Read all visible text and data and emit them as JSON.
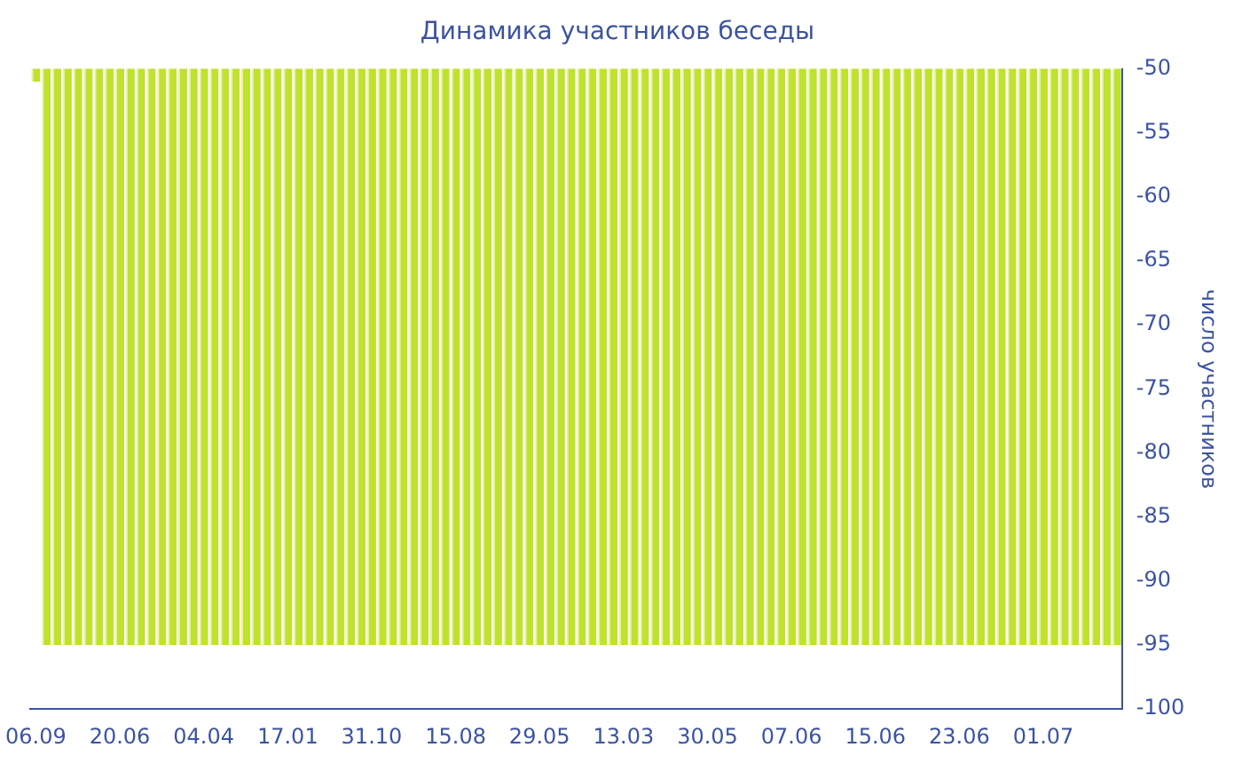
{
  "chart_data": {
    "type": "bar",
    "title": "Динамика участников беседы",
    "ylabel": "число участников",
    "categories": [
      "06.09",
      null,
      null,
      null,
      null,
      null,
      null,
      null,
      "20.06",
      null,
      null,
      null,
      null,
      null,
      null,
      null,
      "04.04",
      null,
      null,
      null,
      null,
      null,
      null,
      null,
      "17.01",
      null,
      null,
      null,
      null,
      null,
      null,
      null,
      "31.10",
      null,
      null,
      null,
      null,
      null,
      null,
      null,
      "15.08",
      null,
      null,
      null,
      null,
      null,
      null,
      null,
      "29.05",
      null,
      null,
      null,
      null,
      null,
      null,
      null,
      "13.03",
      null,
      null,
      null,
      null,
      null,
      null,
      null,
      "30.05",
      null,
      null,
      null,
      null,
      null,
      null,
      null,
      "07.06",
      null,
      null,
      null,
      null,
      null,
      null,
      null,
      "15.06",
      null,
      null,
      null,
      null,
      null,
      null,
      null,
      "23.06",
      null,
      null,
      null,
      null,
      null,
      null,
      null,
      "01.07",
      null,
      null,
      null,
      null,
      null,
      null,
      null
    ],
    "values": [
      -51,
      -95,
      -95,
      -95,
      -95,
      -95,
      -95,
      -95,
      -95,
      -95,
      -95,
      -95,
      -95,
      -95,
      -95,
      -95,
      -95,
      -95,
      -95,
      -95,
      -95,
      -95,
      -95,
      -95,
      -95,
      -95,
      -95,
      -95,
      -95,
      -95,
      -95,
      -95,
      -95,
      -95,
      -95,
      -95,
      -95,
      -95,
      -95,
      -95,
      -95,
      -95,
      -95,
      -95,
      -95,
      -95,
      -95,
      -95,
      -95,
      -95,
      -95,
      -95,
      -95,
      -95,
      -95,
      -95,
      -95,
      -95,
      -95,
      -95,
      -95,
      -95,
      -95,
      -95,
      -95,
      -95,
      -95,
      -95,
      -95,
      -95,
      -95,
      -95,
      -95,
      -95,
      -95,
      -95,
      -95,
      -95,
      -95,
      -95,
      -95,
      -95,
      -95,
      -95,
      -95,
      -95,
      -95,
      -95,
      -95,
      -95,
      -95,
      -95,
      -95,
      -95,
      -95,
      -95,
      -95,
      -95,
      -95,
      -95,
      -95,
      -95,
      -95,
      -95
    ],
    "color": "#bfe22e",
    "ylim": [
      -100,
      -50
    ],
    "yticks": [
      -100,
      -95,
      -90,
      -85,
      -80,
      -75,
      -70,
      -65,
      -60,
      -55,
      -50
    ],
    "grid": false,
    "legend": false
  }
}
